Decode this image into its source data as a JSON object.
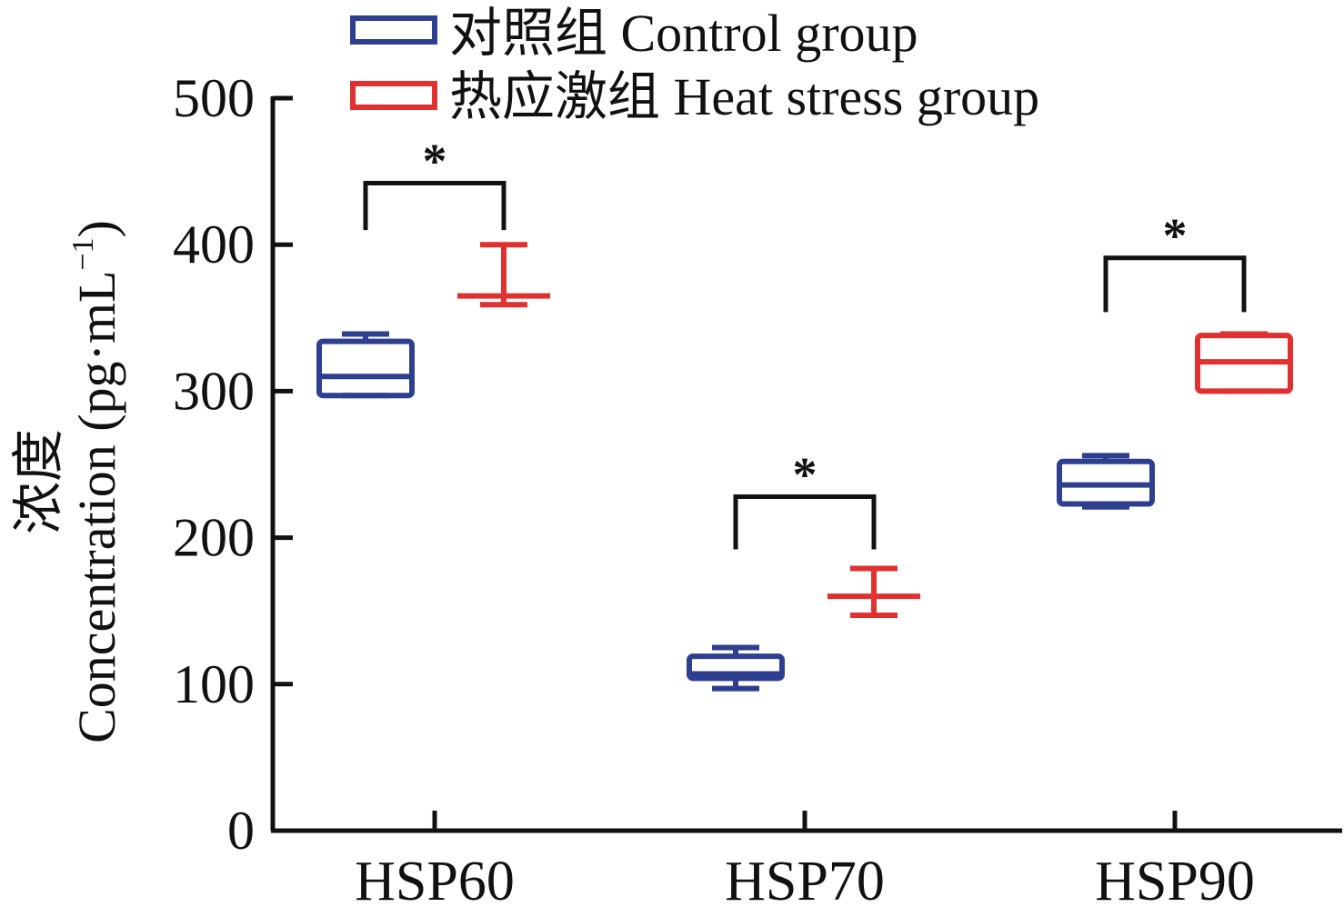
{
  "chart_data": {
    "type": "box",
    "ylabel_cn": "浓度",
    "ylabel_en": "Concentration (pg·mL",
    "ylabel_sup": "−1",
    "ylabel_close": ")",
    "ylim": [
      0,
      500
    ],
    "yticks": [
      "0",
      "100",
      "200",
      "300",
      "400",
      "500"
    ],
    "ytick_values": [
      0,
      100,
      200,
      300,
      400,
      500
    ],
    "categories": [
      "HSP60",
      "HSP70",
      "HSP90"
    ],
    "legend": {
      "position": "top",
      "entries": [
        {
          "label": "对照组 Control group",
          "color": "#2f3f8f"
        },
        {
          "label": "热应激组 Heat stress group",
          "color": "#e03030"
        }
      ]
    },
    "series": [
      {
        "name": "对照组 Control group",
        "color": "#2f3f8f",
        "boxes": [
          {
            "min": 297,
            "q1": 297,
            "median": 310,
            "q3": 334,
            "max": 339
          },
          {
            "min": 97,
            "q1": 104,
            "median": 107,
            "q3": 119,
            "max": 125
          },
          {
            "min": 221,
            "q1": 223,
            "median": 236,
            "q3": 252,
            "max": 256
          }
        ]
      },
      {
        "name": "热应激组 Heat stress group",
        "color": "#e03030",
        "boxes": [
          {
            "min": 359,
            "q1": 365,
            "median": 365,
            "q3": 365,
            "max": 400
          },
          {
            "min": 147,
            "q1": 160,
            "median": 160,
            "q3": 160,
            "max": 179
          },
          {
            "min": 300,
            "q1": 300,
            "median": 320,
            "q3": 338,
            "max": 339
          }
        ]
      }
    ],
    "significance": [
      {
        "category": "HSP60",
        "label": "*",
        "bracket_y": 442,
        "leg_y": 410
      },
      {
        "category": "HSP70",
        "label": "*",
        "bracket_y": 228,
        "leg_y": 192
      },
      {
        "category": "HSP90",
        "label": "*",
        "bracket_y": 391,
        "leg_y": 354
      }
    ]
  }
}
